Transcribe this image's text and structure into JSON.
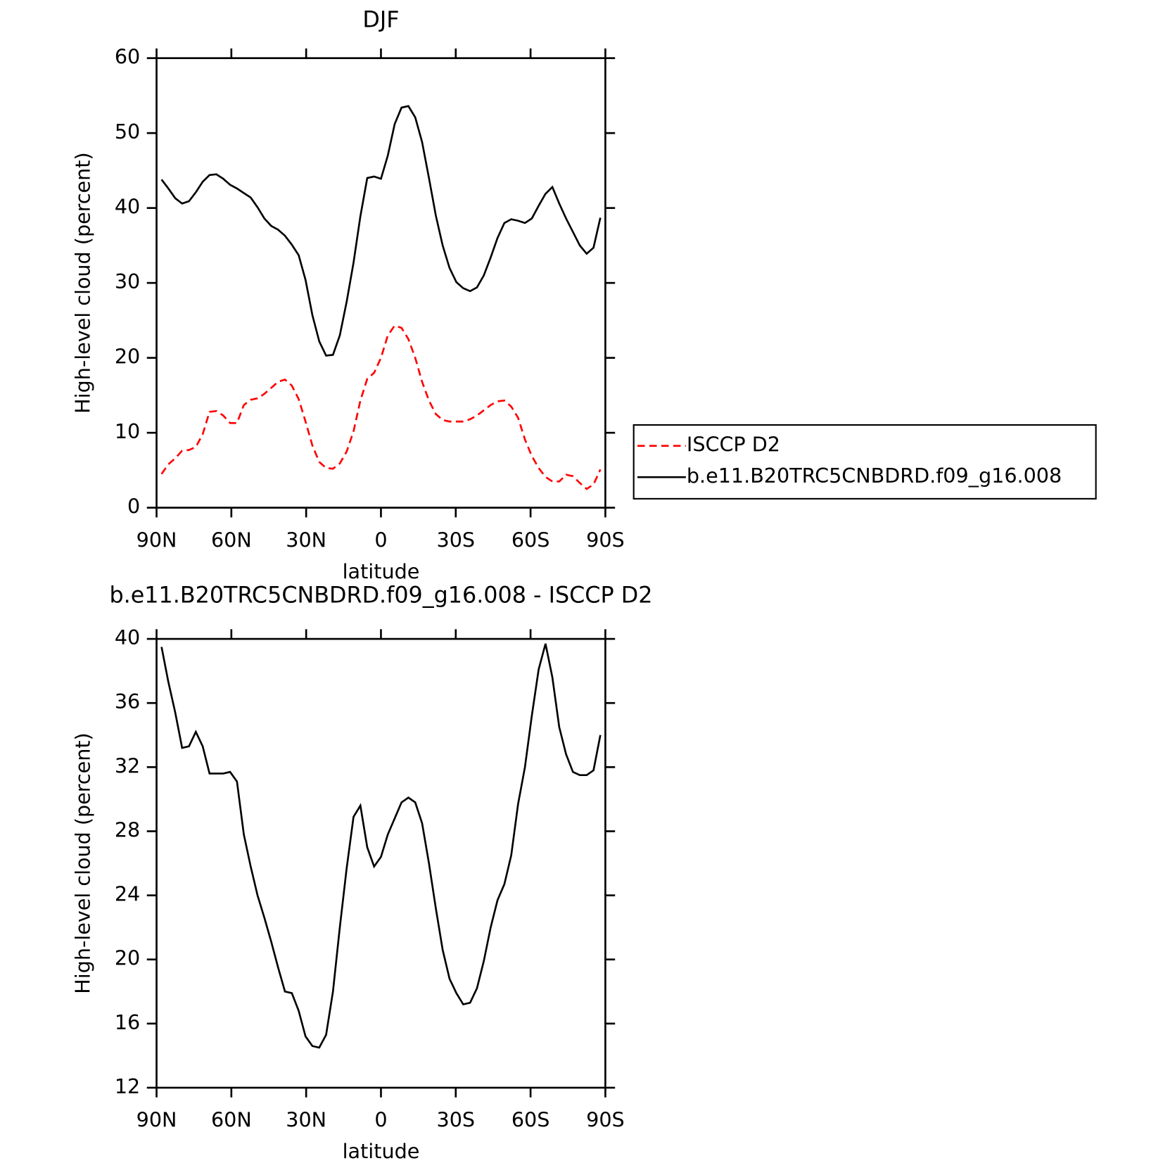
{
  "chart_data": [
    {
      "type": "line",
      "title": "DJF",
      "xlabel": "latitude",
      "ylabel": "High-level cloud (percent)",
      "x": [
        88,
        85.25,
        82.5,
        79.75,
        77,
        74.25,
        71.5,
        68.75,
        66,
        63.25,
        60.5,
        57.75,
        55,
        52.25,
        49.5,
        46.75,
        44,
        41.25,
        38.5,
        35.75,
        33,
        30.25,
        27.5,
        24.75,
        22,
        19.25,
        16.5,
        13.75,
        11,
        8.25,
        5.5,
        2.75,
        0,
        -2.75,
        -5.5,
        -8.25,
        -11,
        -13.75,
        -16.5,
        -19.25,
        -22,
        -24.75,
        -27.5,
        -30.25,
        -33,
        -35.75,
        -38.5,
        -41.25,
        -44,
        -46.75,
        -49.5,
        -52.25,
        -55,
        -57.75,
        -60.5,
        -63.25,
        -66,
        -68.75,
        -71.5,
        -74.25,
        -77,
        -79.75,
        -82.5,
        -85.25,
        -88
      ],
      "series": [
        {
          "name": "ISCCP D2",
          "color": "#ff0000",
          "linestyle": "dashed",
          "values": [
            4.5,
            5.8,
            6.6,
            7.6,
            7.7,
            8.1,
            9.8,
            12.8,
            12.9,
            12.3,
            11.3,
            11.3,
            13.7,
            14.4,
            14.6,
            15.2,
            16.0,
            16.8,
            17.1,
            16.3,
            14.5,
            11.5,
            8.3,
            6.1,
            5.3,
            5.2,
            5.9,
            7.5,
            10.2,
            14.3,
            17.2,
            18.0,
            20.0,
            23.0,
            24.3,
            24.0,
            22.5,
            20.0,
            16.8,
            14.3,
            12.5,
            11.7,
            11.5,
            11.5,
            11.5,
            11.8,
            12.3,
            13.0,
            13.7,
            14.2,
            14.3,
            13.5,
            12.0,
            9.1,
            6.9,
            5.3,
            4.1,
            3.5,
            3.5,
            4.4,
            4.2,
            3.3,
            2.5,
            3.1,
            5.1
          ]
        },
        {
          "name": "b.e11.B20TRC5CNBDRD.f09_g16.008",
          "color": "#000000",
          "linestyle": "solid",
          "values": [
            43.8,
            42.6,
            41.3,
            40.6,
            40.9,
            42.1,
            43.5,
            44.4,
            44.5,
            43.9,
            43.1,
            42.6,
            42.0,
            41.4,
            40.1,
            38.6,
            37.6,
            37.1,
            36.3,
            35.1,
            33.7,
            30.4,
            25.7,
            22.2,
            20.3,
            20.4,
            23.0,
            27.5,
            32.7,
            38.9,
            44.0,
            44.2,
            43.9,
            47.0,
            51.2,
            53.4,
            53.6,
            52.1,
            48.8,
            44.0,
            39.0,
            35.0,
            32.0,
            30.1,
            29.3,
            28.9,
            29.4,
            31.0,
            33.4,
            36.0,
            38.0,
            38.5,
            38.3,
            38.0,
            38.6,
            40.3,
            41.9,
            42.8,
            40.6,
            38.6,
            36.8,
            35.0,
            33.9,
            34.7,
            38.7
          ]
        }
      ],
      "xlim": [
        90,
        -90
      ],
      "ylim": [
        0,
        60
      ],
      "xticks": [
        {
          "value": 90,
          "label": "90N"
        },
        {
          "value": 60,
          "label": "60N"
        },
        {
          "value": 30,
          "label": "30N"
        },
        0,
        {
          "value": -30,
          "label": "30S"
        },
        {
          "value": -60,
          "label": "60S"
        },
        {
          "value": -90,
          "label": "90S"
        }
      ],
      "yticks": [
        0,
        10,
        20,
        30,
        40,
        50,
        60
      ],
      "legend": "right"
    },
    {
      "type": "line",
      "title": "b.e11.B20TRC5CNBDRD.f09_g16.008 - ISCCP D2",
      "xlabel": "latitude",
      "ylabel": "High-level cloud (percent)",
      "x": [
        88,
        85.25,
        82.5,
        79.75,
        77,
        74.25,
        71.5,
        68.75,
        66,
        63.25,
        60.5,
        57.75,
        55,
        52.25,
        49.5,
        46.75,
        44,
        41.25,
        38.5,
        35.75,
        33,
        30.25,
        27.5,
        24.75,
        22,
        19.25,
        16.5,
        13.75,
        11,
        8.25,
        5.5,
        2.75,
        0,
        -2.75,
        -5.5,
        -8.25,
        -11,
        -13.75,
        -16.5,
        -19.25,
        -22,
        -24.75,
        -27.5,
        -30.25,
        -33,
        -35.75,
        -38.5,
        -41.25,
        -44,
        -46.75,
        -49.5,
        -52.25,
        -55,
        -57.75,
        -60.5,
        -63.25,
        -66,
        -68.75,
        -71.5,
        -74.25,
        -77,
        -79.75,
        -82.5,
        -85.25,
        -88
      ],
      "series": [
        {
          "color": "#000000",
          "linestyle": "solid",
          "values": [
            39.5,
            37.3,
            35.4,
            33.2,
            33.3,
            34.2,
            33.3,
            31.6,
            31.6,
            31.6,
            31.7,
            31.1,
            27.8,
            25.8,
            24.0,
            22.6,
            21.1,
            19.5,
            18.0,
            17.9,
            16.8,
            15.2,
            14.6,
            14.5,
            15.3,
            18.0,
            22.0,
            25.7,
            28.9,
            29.6,
            27.0,
            25.8,
            26.4,
            27.8,
            28.8,
            29.8,
            30.1,
            29.8,
            28.5,
            26.0,
            23.2,
            20.6,
            18.8,
            17.9,
            17.2,
            17.3,
            18.2,
            19.9,
            22.0,
            23.7,
            24.7,
            26.5,
            29.7,
            32.0,
            35.2,
            38.1,
            39.7,
            37.6,
            34.5,
            32.8,
            31.7,
            31.5,
            31.5,
            31.8,
            34.0
          ]
        }
      ],
      "xlim": [
        90,
        -90
      ],
      "ylim": [
        12,
        40
      ],
      "xticks": [
        {
          "value": 90,
          "label": "90N"
        },
        {
          "value": 60,
          "label": "60N"
        },
        {
          "value": 30,
          "label": "30N"
        },
        0,
        {
          "value": -30,
          "label": "30S"
        },
        {
          "value": -60,
          "label": "60S"
        },
        {
          "value": -90,
          "label": "90S"
        }
      ],
      "yticks": [
        12,
        16,
        20,
        24,
        28,
        32,
        36,
        40
      ]
    }
  ]
}
